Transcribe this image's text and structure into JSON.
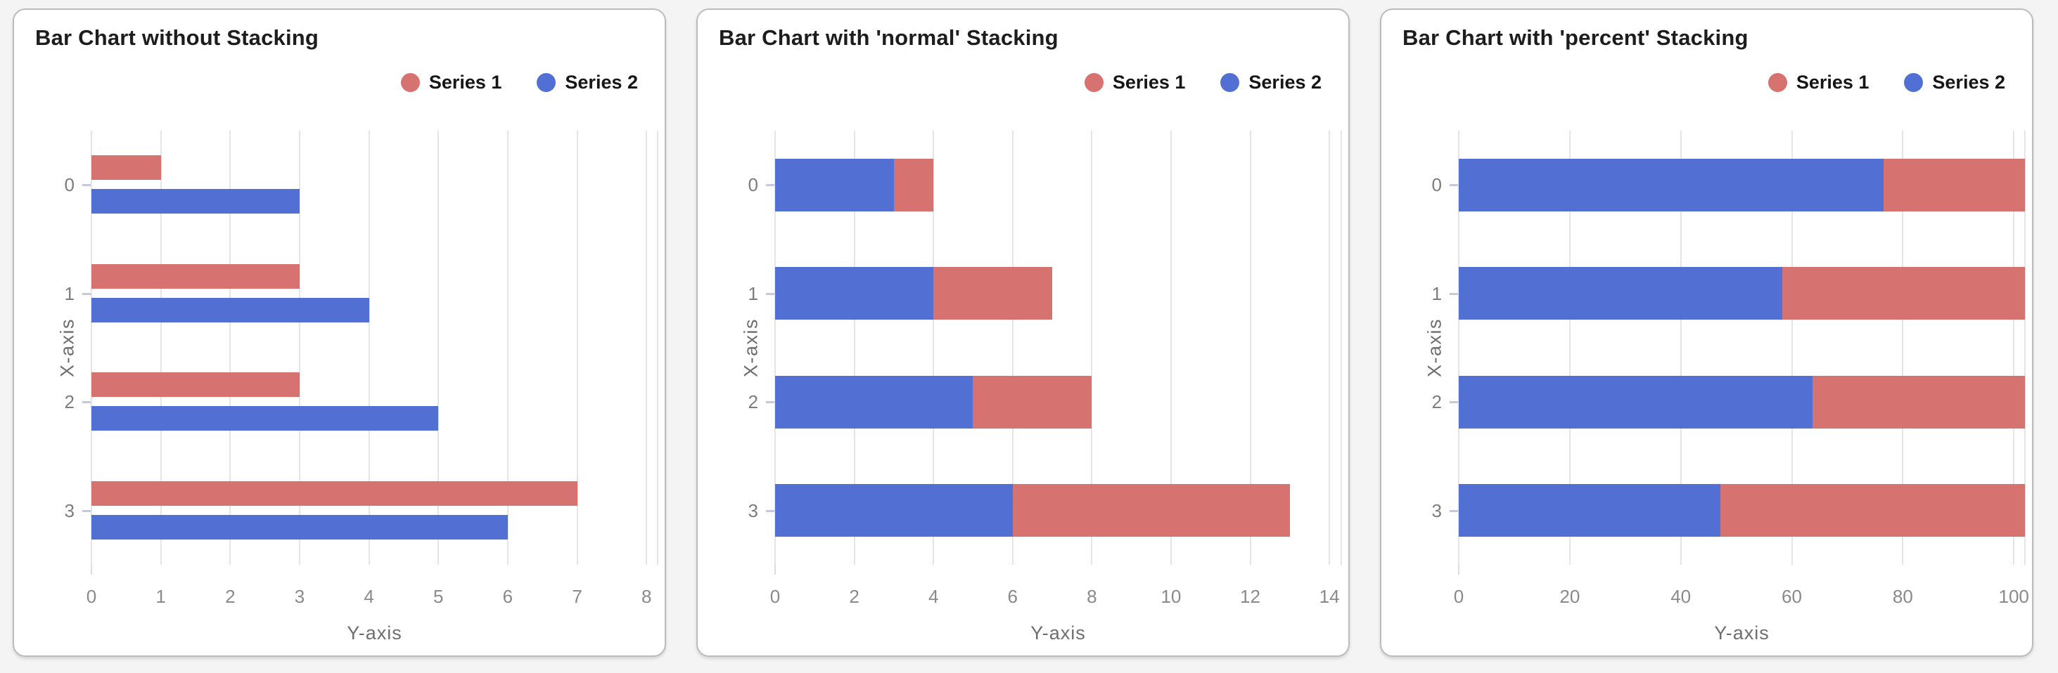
{
  "page": {
    "background": "#f4f4f5"
  },
  "series_colors": {
    "series1": "#d67270",
    "series2": "#5270d4"
  },
  "chart_data": [
    {
      "type": "bar",
      "orientation": "horizontal",
      "stacking": "none",
      "title": "Bar Chart without Stacking",
      "xlabel": "Y-axis",
      "ylabel": "X-axis",
      "categories": [
        "0",
        "1",
        "2",
        "3"
      ],
      "series": [
        {
          "name": "Series 1",
          "color": "#d67270",
          "values": [
            1,
            3,
            3,
            7
          ]
        },
        {
          "name": "Series 2",
          "color": "#5270d4",
          "values": [
            3,
            4,
            5,
            6
          ]
        }
      ],
      "legend": [
        {
          "name": "Series 1",
          "color": "#d67270"
        },
        {
          "name": "Series 2",
          "color": "#5270d4"
        }
      ],
      "legend_position": "top-right",
      "grid": true,
      "value_ticks": [
        0,
        1,
        2,
        3,
        4,
        5,
        6,
        7,
        8
      ],
      "axis_max": 8.16
    },
    {
      "type": "bar",
      "orientation": "horizontal",
      "stacking": "normal",
      "stack_order": [
        "Series 2",
        "Series 1"
      ],
      "title": "Bar Chart with 'normal' Stacking",
      "xlabel": "Y-axis",
      "ylabel": "X-axis",
      "categories": [
        "0",
        "1",
        "2",
        "3"
      ],
      "series": [
        {
          "name": "Series 1",
          "color": "#d67270",
          "values": [
            1,
            3,
            3,
            7
          ]
        },
        {
          "name": "Series 2",
          "color": "#5270d4",
          "values": [
            3,
            4,
            5,
            6
          ]
        }
      ],
      "stacked_totals": [
        4,
        7,
        8,
        13
      ],
      "legend": [
        {
          "name": "Series 1",
          "color": "#d67270"
        },
        {
          "name": "Series 2",
          "color": "#5270d4"
        }
      ],
      "legend_position": "top-right",
      "grid": true,
      "value_ticks": [
        0,
        2,
        4,
        6,
        8,
        10,
        12,
        14
      ],
      "axis_max": 14.3
    },
    {
      "type": "bar",
      "orientation": "horizontal",
      "stacking": "percent",
      "stack_order": [
        "Series 2",
        "Series 1"
      ],
      "title": "Bar Chart with 'percent' Stacking",
      "xlabel": "Y-axis",
      "ylabel": "X-axis",
      "categories": [
        "0",
        "1",
        "2",
        "3"
      ],
      "series": [
        {
          "name": "Series 1",
          "color": "#d67270",
          "values": [
            1,
            3,
            3,
            7
          ]
        },
        {
          "name": "Series 2",
          "color": "#5270d4",
          "values": [
            3,
            4,
            5,
            6
          ]
        }
      ],
      "percent_series2": [
        75,
        57.1,
        62.5,
        46.2
      ],
      "percent_series1": [
        25,
        42.9,
        37.5,
        53.8
      ],
      "legend": [
        {
          "name": "Series 1",
          "color": "#d67270"
        },
        {
          "name": "Series 2",
          "color": "#5270d4"
        }
      ],
      "legend_position": "top-right",
      "grid": true,
      "value_ticks": [
        0,
        20,
        40,
        60,
        80,
        100
      ],
      "axis_max": 102
    }
  ]
}
